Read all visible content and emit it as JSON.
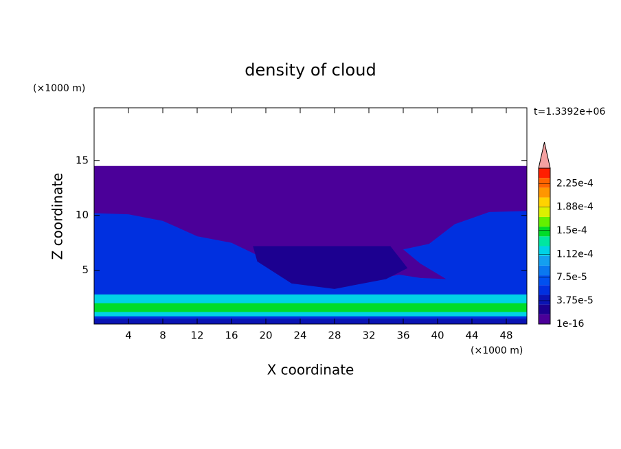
{
  "chart_data": {
    "type": "contour",
    "title": "density of cloud",
    "x_label": "X coordinate",
    "y_label": "Z coordinate",
    "x_unit": "(×1000 m)",
    "y_unit": "(×1000 m)",
    "time_label": "t=1.3392e+06",
    "xlim": [
      0,
      50.4
    ],
    "ylim": [
      0.1,
      19.8
    ],
    "xticks": [
      4,
      8,
      12,
      16,
      20,
      24,
      28,
      32,
      36,
      40,
      44,
      48
    ],
    "yticks": [
      5,
      10,
      15
    ],
    "clim": [
      1e-16,
      0.00025
    ],
    "cticks": [
      {
        "value": 1e-16,
        "label": "1e-16"
      },
      {
        "value": 3.75e-05,
        "label": "3.75e-5"
      },
      {
        "value": 7.5e-05,
        "label": "7.5e-5"
      },
      {
        "value": 0.000112,
        "label": "1.12e-4"
      },
      {
        "value": 0.00015,
        "label": "1.5e-4"
      },
      {
        "value": 0.000188,
        "label": "1.88e-4"
      },
      {
        "value": 0.000225,
        "label": "2.25e-4"
      }
    ],
    "colors": [
      "#4b0099",
      "#1c0090",
      "#0a14b4",
      "#0030e0",
      "#0050f0",
      "#0a78f0",
      "#14a0f0",
      "#00d2e6",
      "#00e6a0",
      "#00dc28",
      "#64f000",
      "#dcf000",
      "#ffd200",
      "#ff9600",
      "#ff6400",
      "#ff1e00"
    ],
    "extend_color": "#f4a0a0",
    "regions": [
      {
        "value": 1e-16,
        "boundary": [
          [
            0,
            0.1
          ],
          [
            50.4,
            0.1
          ],
          [
            50.4,
            14.5
          ],
          [
            0,
            14.5
          ]
        ]
      },
      {
        "value": 6e-05,
        "boundary": [
          [
            0,
            10.2
          ],
          [
            4,
            10.1
          ],
          [
            8,
            9.5
          ],
          [
            12,
            8.1
          ],
          [
            16,
            7.5
          ],
          [
            20,
            6
          ],
          [
            24,
            4.3
          ],
          [
            28,
            3.8
          ],
          [
            32,
            4
          ],
          [
            35.5,
            4.6
          ],
          [
            38,
            4.3
          ],
          [
            41,
            4.2
          ],
          [
            38,
            5.6
          ],
          [
            36,
            6.9
          ],
          [
            39,
            7.4
          ],
          [
            42,
            9.2
          ],
          [
            46,
            10.3
          ],
          [
            50.4,
            10.4
          ],
          [
            50.4,
            0.1
          ],
          [
            0,
            0.1
          ]
        ]
      },
      {
        "value": 2e-05,
        "boundary": [
          [
            18.5,
            7.2
          ],
          [
            34.5,
            7.2
          ],
          [
            36.5,
            5.2
          ],
          [
            34,
            4.2
          ],
          [
            28,
            3.3
          ],
          [
            23,
            3.8
          ],
          [
            19,
            5.8
          ]
        ]
      },
      {
        "value": 0.00011,
        "boundary": [
          [
            0,
            0.8
          ],
          [
            50.4,
            0.8
          ],
          [
            50.4,
            2.8
          ],
          [
            0,
            2.8
          ]
        ]
      },
      {
        "value": 0.00015,
        "boundary": [
          [
            0,
            1.2
          ],
          [
            50.4,
            1.2
          ],
          [
            50.4,
            2.0
          ],
          [
            0,
            2.0
          ]
        ]
      },
      {
        "value": 4e-05,
        "boundary": [
          [
            0,
            0.1
          ],
          [
            50.4,
            0.1
          ],
          [
            50.4,
            0.6
          ],
          [
            0,
            0.6
          ]
        ]
      }
    ]
  }
}
